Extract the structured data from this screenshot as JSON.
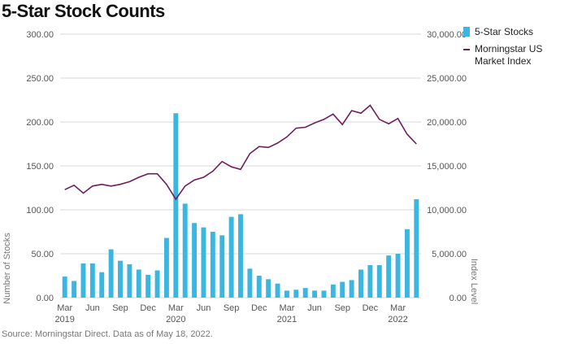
{
  "title": "5-Star Stock Counts",
  "source": "Source: Morningstar Direct. Data as of May 18, 2022.",
  "colors": {
    "bar": "#3bb6e0",
    "line": "#6b1f5c",
    "grid": "#d9d9d9"
  },
  "chart_data": {
    "type": "bar",
    "title": "5-Star Stock Counts",
    "x_tick_labels": [
      {
        "index": 0,
        "line1": "Mar",
        "line2": "2019"
      },
      {
        "index": 3,
        "line1": "Jun",
        "line2": ""
      },
      {
        "index": 6,
        "line1": "Sep",
        "line2": ""
      },
      {
        "index": 9,
        "line1": "Dec",
        "line2": ""
      },
      {
        "index": 12,
        "line1": "Mar",
        "line2": "2020"
      },
      {
        "index": 15,
        "line1": "Jun",
        "line2": ""
      },
      {
        "index": 18,
        "line1": "Sep",
        "line2": ""
      },
      {
        "index": 21,
        "line1": "Dec",
        "line2": ""
      },
      {
        "index": 24,
        "line1": "Mar",
        "line2": "2021"
      },
      {
        "index": 27,
        "line1": "Jun",
        "line2": ""
      },
      {
        "index": 30,
        "line1": "Sep",
        "line2": ""
      },
      {
        "index": 33,
        "line1": "Dec",
        "line2": ""
      },
      {
        "index": 36,
        "line1": "Mar",
        "line2": "2022"
      }
    ],
    "left_axis": {
      "label": "Number of Stocks",
      "ylim": [
        0,
        300
      ],
      "ticks": [
        "0.00",
        "50.00",
        "100.00",
        "150.00",
        "200.00",
        "250.00",
        "300.00"
      ]
    },
    "right_axis": {
      "label": "Index Level",
      "ylim": [
        0,
        30000
      ],
      "ticks": [
        "0.00",
        "5,000.00",
        "10,000.00",
        "15,000.00",
        "20,000.00",
        "25,000.00",
        "30,000.00"
      ]
    },
    "grid": true,
    "legend_position": "right",
    "series": [
      {
        "name": "5-Star Stocks",
        "kind": "bar",
        "axis": "left",
        "values": [
          24,
          19,
          39,
          39,
          29,
          55,
          42,
          38,
          32,
          26,
          31,
          68,
          210,
          107,
          85,
          80,
          75,
          71,
          92,
          95,
          33,
          25,
          21,
          16,
          8,
          9,
          11,
          8,
          8,
          15,
          18,
          20,
          32,
          37,
          37,
          48,
          50,
          78,
          112
        ]
      },
      {
        "name": "Morningstar US Market Index",
        "kind": "line",
        "axis": "right",
        "values": [
          12300,
          12800,
          11900,
          12700,
          12900,
          12700,
          12900,
          13200,
          13700,
          14100,
          14100,
          12900,
          11200,
          12700,
          13400,
          13700,
          14400,
          15500,
          14900,
          14600,
          16400,
          17200,
          17100,
          17600,
          18300,
          19300,
          19400,
          19900,
          20300,
          20900,
          19700,
          21300,
          21000,
          21900,
          20300,
          19800,
          20400,
          18600,
          17500
        ]
      }
    ]
  }
}
